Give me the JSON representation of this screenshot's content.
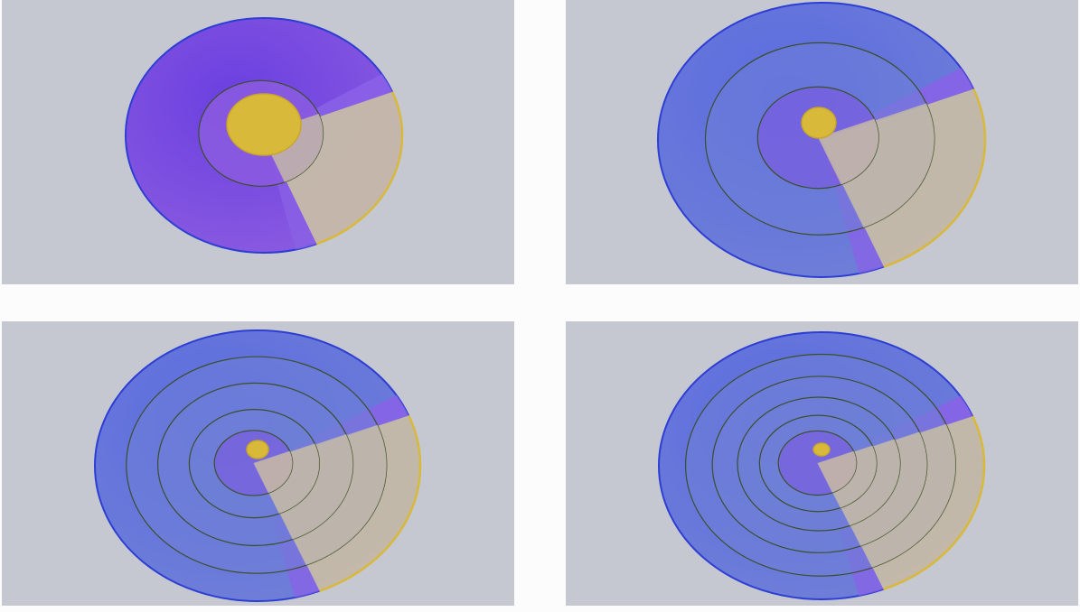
{
  "figure": {
    "panels": [
      {
        "rings": 2,
        "style": "purple"
      },
      {
        "rings": 3,
        "style": "blue"
      },
      {
        "rings": 5,
        "style": "blue"
      },
      {
        "rings": 6,
        "style": "blue"
      }
    ],
    "colors": {
      "background": "#c5c7d1",
      "page": "#fcfcfd",
      "purple_fill": "#8a5ae0",
      "blue_fill": "#6f7fd7",
      "violet_band": "#8a62e6",
      "tan_fill": "#c7bca6",
      "gold": "#d8b93a",
      "outer_rim": "#2d3ed3",
      "step_line": "#3b4f2a"
    }
  }
}
